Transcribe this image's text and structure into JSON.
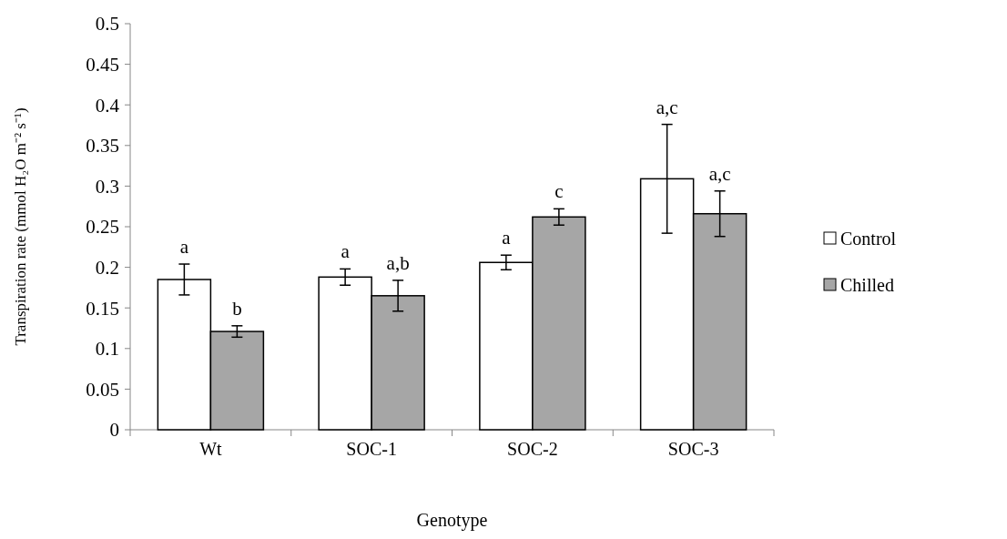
{
  "chart_data": {
    "type": "bar",
    "xlabel": "Genotype",
    "ylabel": "Transpiration rate (mmol  H₂O m⁻²  s⁻¹)",
    "categories": [
      "Wt",
      "SOC-1",
      "SOC-2",
      "SOC-3"
    ],
    "series": [
      {
        "name": "Control",
        "color": "#ffffff",
        "values": [
          0.185,
          0.188,
          0.206,
          0.309
        ],
        "errors": [
          0.019,
          0.01,
          0.009,
          0.067
        ]
      },
      {
        "name": "Chilled",
        "color": "#a6a6a6",
        "values": [
          0.121,
          0.165,
          0.262,
          0.266
        ],
        "errors": [
          0.007,
          0.019,
          0.01,
          0.028
        ]
      }
    ],
    "ylim": [
      0,
      0.5
    ],
    "yticks": [
      0,
      0.05,
      0.1,
      0.15,
      0.2,
      0.25,
      0.3,
      0.35,
      0.4,
      0.45,
      0.5
    ],
    "legend": "right",
    "annotations": [
      "a",
      "b",
      "a",
      "a,b",
      "a",
      "c",
      "a,c",
      "a,c"
    ]
  }
}
